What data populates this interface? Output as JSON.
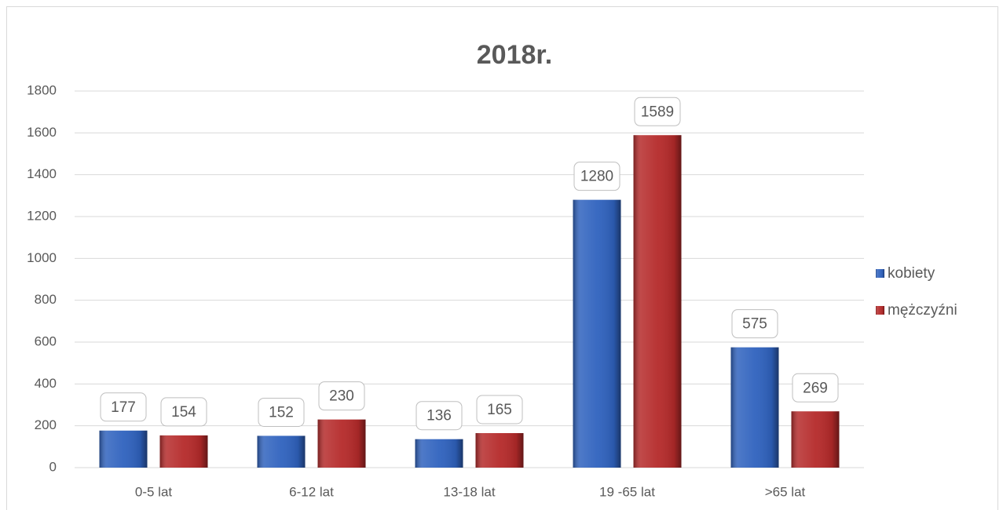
{
  "chart_data": {
    "type": "bar",
    "title": "2018r.",
    "categories": [
      "0-5 lat",
      "6-12 lat",
      "13-18 lat",
      "19 -65 lat",
      ">65 lat"
    ],
    "series": [
      {
        "name": "kobiety",
        "color": "#2f62be",
        "values": [
          177,
          152,
          136,
          1280,
          575
        ]
      },
      {
        "name": "mężczyźni",
        "color": "#b52a2a",
        "values": [
          154,
          230,
          165,
          1589,
          269
        ]
      }
    ],
    "ylim": [
      0,
      1800
    ],
    "yticks": [
      0,
      200,
      400,
      600,
      800,
      1000,
      1200,
      1400,
      1600,
      1800
    ],
    "grid": true,
    "legend": "right"
  }
}
